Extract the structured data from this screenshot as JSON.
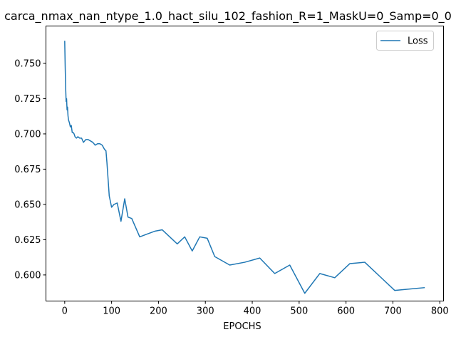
{
  "chart_data": {
    "type": "line",
    "title": "carca_nmax_nan_ntype_1.0_hact_silu_102_fashion_R=1_MaskU=0_Samp=0_0",
    "xlabel": "EPOCHS",
    "ylabel": "",
    "xlim": [
      -40,
      808
    ],
    "ylim": [
      0.5815,
      0.7765
    ],
    "xticks": [
      0,
      100,
      200,
      300,
      400,
      500,
      600,
      700,
      800
    ],
    "yticks": [
      0.6,
      0.625,
      0.65,
      0.675,
      0.7,
      0.725,
      0.75
    ],
    "ytick_labels": [
      "0.600",
      "0.625",
      "0.650",
      "0.675",
      "0.700",
      "0.725",
      "0.750"
    ],
    "grid": false,
    "legend": {
      "placement": "upper right"
    },
    "series": [
      {
        "name": "Loss",
        "color": "#1f77b4",
        "x": [
          0,
          1,
          2,
          3,
          4,
          5,
          6,
          7,
          8,
          10,
          12,
          14,
          16,
          18,
          20,
          22,
          25,
          28,
          32,
          36,
          40,
          45,
          50,
          55,
          60,
          65,
          70,
          75,
          80,
          85,
          88,
          90,
          95,
          100,
          105,
          112,
          120,
          128,
          135,
          143,
          160,
          176,
          192,
          208,
          240,
          256,
          272,
          288,
          304,
          320,
          352,
          384,
          416,
          448,
          480,
          512,
          544,
          576,
          608,
          640,
          672,
          704,
          736,
          768
        ],
        "y": [
          0.766,
          0.748,
          0.733,
          0.723,
          0.725,
          0.717,
          0.719,
          0.713,
          0.71,
          0.708,
          0.705,
          0.706,
          0.701,
          0.701,
          0.7,
          0.698,
          0.697,
          0.698,
          0.697,
          0.697,
          0.694,
          0.696,
          0.696,
          0.695,
          0.694,
          0.692,
          0.693,
          0.693,
          0.692,
          0.689,
          0.688,
          0.68,
          0.656,
          0.648,
          0.65,
          0.651,
          0.638,
          0.654,
          0.641,
          0.64,
          0.627,
          0.629,
          0.631,
          0.632,
          0.622,
          0.627,
          0.617,
          0.627,
          0.626,
          0.613,
          0.607,
          0.609,
          0.612,
          0.601,
          0.607,
          0.587,
          0.601,
          0.598,
          0.608,
          0.609,
          0.599,
          0.589,
          0.59,
          0.591
        ]
      }
    ]
  }
}
